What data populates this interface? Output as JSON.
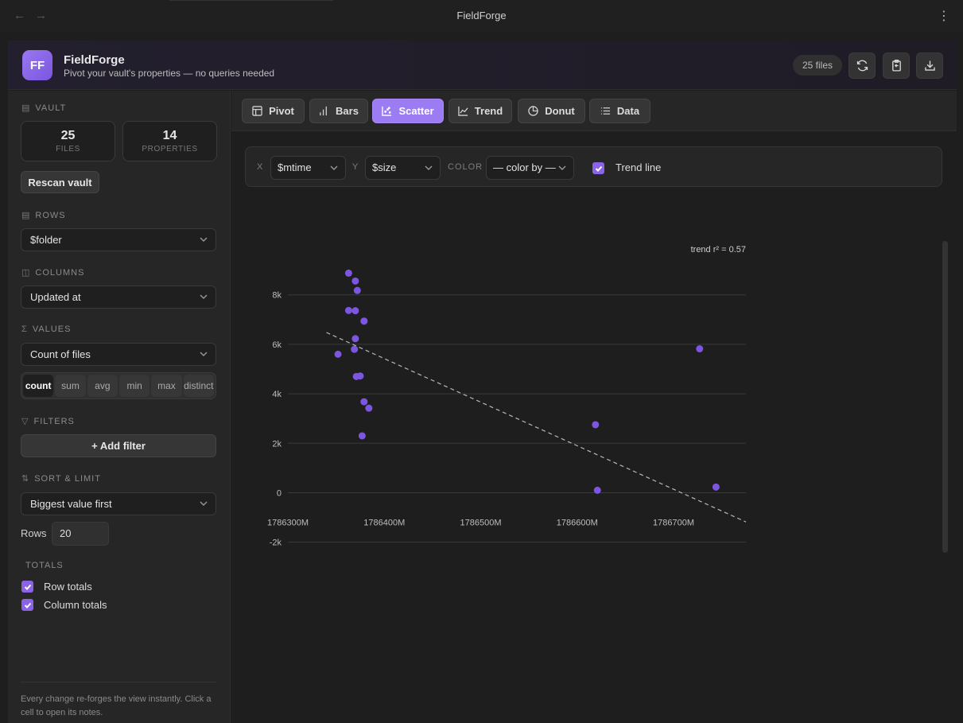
{
  "window": {
    "title": "FieldForge",
    "back_icon": "arrow-left-icon",
    "forward_icon": "arrow-right-icon",
    "menu_icon": "more-vertical-icon"
  },
  "header": {
    "logo": "FF",
    "app_name": "FieldForge",
    "tagline": "Pivot your vault's properties — no queries needed",
    "files_count": "25 files",
    "buttons": [
      "refresh-icon",
      "clipboard-copy-icon",
      "download-icon"
    ]
  },
  "sidebar": {
    "vault_label": "VAULT",
    "stats": [
      {
        "value": "25",
        "label": "FILES"
      },
      {
        "value": "14",
        "label": "PROPERTIES"
      }
    ],
    "rescan_label": "Rescan vault",
    "rows_label": "ROWS",
    "rows_value": "$folder",
    "columns_label": "COLUMNS",
    "columns_value": "Updated at",
    "values_label": "VALUES",
    "values_value": "Count of files",
    "aggregations": [
      {
        "label": "count",
        "active": true
      },
      {
        "label": "sum",
        "active": false
      },
      {
        "label": "avg",
        "active": false
      },
      {
        "label": "min",
        "active": false
      },
      {
        "label": "max",
        "active": false
      },
      {
        "label": "distinct",
        "active": false
      }
    ],
    "filters_label": "FILTERS",
    "add_filter_label": "+ Add filter",
    "sort_label": "SORT & LIMIT",
    "sort_value": "Biggest value first",
    "rows_limit_label": "Rows",
    "rows_limit_value": "20",
    "totals_label": "TOTALS",
    "row_totals_label": "Row totals",
    "row_totals_checked": true,
    "column_totals_label": "Column totals",
    "column_totals_checked": true,
    "footnote": "Every change re-forges the view instantly. Click a cell to open its notes."
  },
  "tabs": [
    {
      "label": "Pivot",
      "icon": "table-icon",
      "active": false
    },
    {
      "label": "Bars",
      "icon": "bar-chart-icon",
      "active": false
    },
    {
      "label": "Scatter",
      "icon": "scatter-chart-icon",
      "active": true
    },
    {
      "label": "Trend",
      "icon": "line-chart-icon",
      "active": false
    },
    {
      "label": "Donut",
      "icon": "pie-chart-icon",
      "active": false
    },
    {
      "label": "Data",
      "icon": "list-icon",
      "active": false
    }
  ],
  "controls": {
    "x_label": "X",
    "x_value": "$mtime",
    "y_label": "Y",
    "y_value": "$size",
    "color_label": "COLOR",
    "color_value": "— color by —",
    "trend_label": "Trend line",
    "trend_checked": true
  },
  "colors": {
    "accent": "#8b63e6",
    "accent_light": "#9c7cf2",
    "point": "#7c55e0",
    "background": "#1e1e1e"
  },
  "chart_data": {
    "type": "scatter",
    "annotation": "trend r² = 0.57",
    "xlabel": "",
    "ylabel": "",
    "xlim": [
      1786300,
      1786775
    ],
    "ylim": [
      -2300,
      9600
    ],
    "x_ticks": [
      1786300,
      1786400,
      1786500,
      1786600,
      1786700
    ],
    "x_tick_labels": [
      "1786300M",
      "1786400M",
      "1786500M",
      "1786600M",
      "1786700M"
    ],
    "y_ticks": [
      8000,
      6000,
      4000,
      2000,
      0,
      -2000
    ],
    "y_tick_labels": [
      "8k",
      "6k",
      "4k",
      "2k",
      "0",
      "-2k"
    ],
    "grid": true,
    "series": [
      {
        "x": [
          1786363,
          1786370,
          1786372,
          1786370,
          1786379,
          1786363,
          1786379,
          1786370,
          1786352,
          1786369,
          1786371,
          1786375,
          1786379,
          1786384,
          1786377,
          1786619,
          1786621,
          1786727,
          1786744
        ],
        "y": [
          8880,
          8560,
          8180,
          7360,
          6940,
          7370,
          6940,
          6230,
          5600,
          5800,
          4700,
          4720,
          3680,
          3420,
          2300,
          2750,
          100,
          5820,
          230
        ]
      }
    ],
    "trend": {
      "x": [
        1786340,
        1786775
      ],
      "y": [
        6480,
        -1180
      ]
    }
  }
}
